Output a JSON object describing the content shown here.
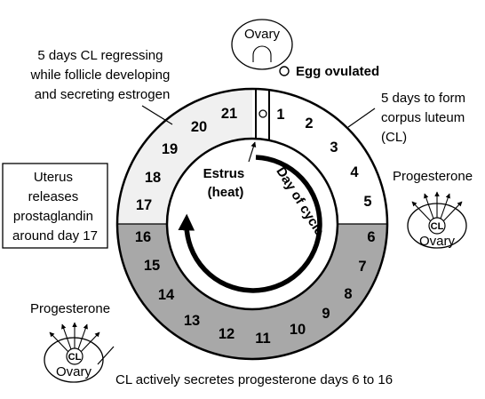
{
  "colors": {
    "regressing_phase": "#f0f0f0",
    "cl_active_phase": "#a8a8a8",
    "forming_phase": "#ffffff",
    "stroke": "#000000"
  },
  "ovary_top": {
    "label": "Ovary"
  },
  "egg_ovulated": "Egg ovulated",
  "regressing_note": {
    "lines": [
      "5 days CL regressing",
      "while follicle developing",
      "and secreting estrogen"
    ]
  },
  "forming_note": {
    "lines": [
      "5 days to form",
      "corpus luteum",
      "(CL)"
    ]
  },
  "uterus_box": {
    "lines": [
      "Uterus",
      "releases",
      "prostaglandin",
      "around day 17"
    ]
  },
  "progesterone_right": {
    "title": "Progesterone",
    "cl_label": "CL",
    "ovary_label": "Ovary"
  },
  "progesterone_left": {
    "title": "Progesterone",
    "cl_label": "CL",
    "ovary_label": "Ovary"
  },
  "estrus_label": {
    "lines": [
      "Estrus",
      "(heat)"
    ]
  },
  "day_of_cycle": "Day of cycle",
  "cl_active_note": "CL actively secretes progesterone days 6 to 16",
  "days": [
    "1",
    "2",
    "3",
    "4",
    "5",
    "6",
    "7",
    "8",
    "9",
    "10",
    "11",
    "12",
    "13",
    "14",
    "15",
    "16",
    "17",
    "18",
    "19",
    "20",
    "21"
  ]
}
